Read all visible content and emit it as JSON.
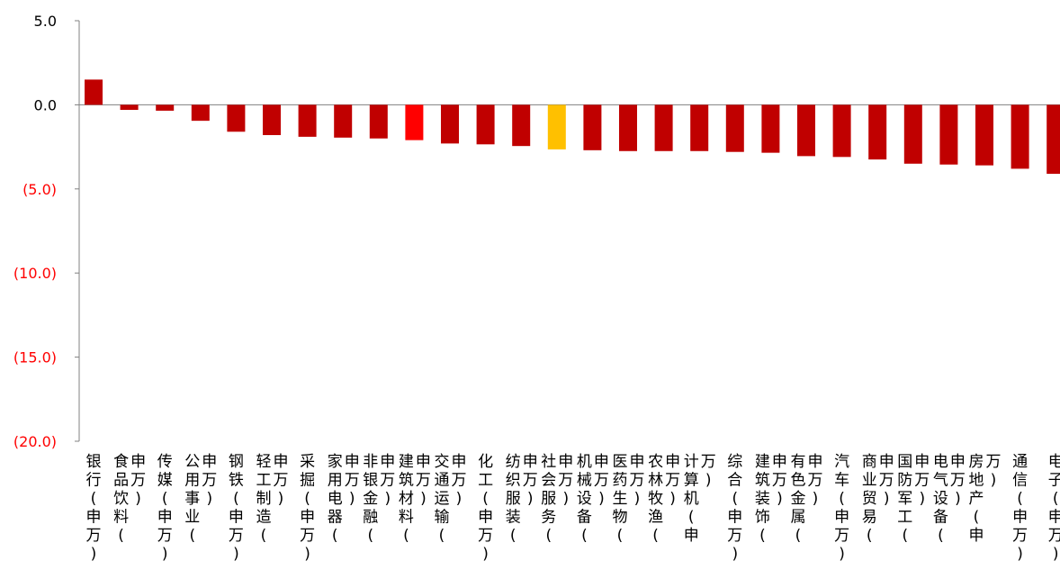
{
  "chart_data": {
    "type": "bar",
    "title": "",
    "xlabel": "",
    "ylabel": "",
    "ylim": [
      -20,
      5
    ],
    "yticks": [
      {
        "value": 5,
        "label": "5.0",
        "color": "#000000"
      },
      {
        "value": 0,
        "label": "0.0",
        "color": "#000000"
      },
      {
        "value": -5,
        "label": "(5.0)",
        "color": "#ff0000"
      },
      {
        "value": -10,
        "label": "(10.0)",
        "color": "#ff0000"
      },
      {
        "value": -15,
        "label": "(15.0)",
        "color": "#ff0000"
      },
      {
        "value": -20,
        "label": "(20.0)",
        "color": "#ff0000"
      }
    ],
    "categories": [
      "银行(申万)",
      "食品饮料(申万)",
      "传媒(申万)",
      "公用事业(申万)",
      "钢铁(申万)",
      "轻工制造(申万)",
      "采掘(申万)",
      "家用电器(申万)",
      "非银金融(申万)",
      "建筑材料(申万)",
      "交通运输(申万)",
      "化工(申万)",
      "纺织服装(申万)",
      "社会服务(申万)",
      "机械设备(申万)",
      "医药生物(申万)",
      "农林牧渔(申万)",
      "计算机(申万)",
      "综合(申万)",
      "建筑装饰(申万)",
      "有色金属(申万)",
      "汽车(申万)",
      "商业贸易(申万)",
      "国防军工(申万)",
      "电气设备(申万)",
      "房地产(申万)",
      "通信(申万)",
      "电子(申万)"
    ],
    "values": [
      1.5,
      -0.3,
      -0.35,
      -0.95,
      -1.6,
      -1.8,
      -1.9,
      -1.95,
      -2.0,
      -2.1,
      -2.3,
      -2.35,
      -2.45,
      -2.65,
      -2.7,
      -2.75,
      -2.75,
      -2.75,
      -2.8,
      -2.85,
      -3.05,
      -3.1,
      -3.25,
      -3.5,
      -3.55,
      -3.6,
      -3.8,
      -4.1
    ],
    "bar_colors": [
      "#c00000",
      "#c00000",
      "#c00000",
      "#c00000",
      "#c00000",
      "#c00000",
      "#c00000",
      "#c00000",
      "#c00000",
      "#ff0000",
      "#c00000",
      "#c00000",
      "#c00000",
      "#ffc000",
      "#c00000",
      "#c00000",
      "#c00000",
      "#c00000",
      "#c00000",
      "#c00000",
      "#c00000",
      "#c00000",
      "#c00000",
      "#c00000",
      "#c00000",
      "#c00000",
      "#c00000",
      "#c00000"
    ],
    "grid": false,
    "legend": "none"
  }
}
